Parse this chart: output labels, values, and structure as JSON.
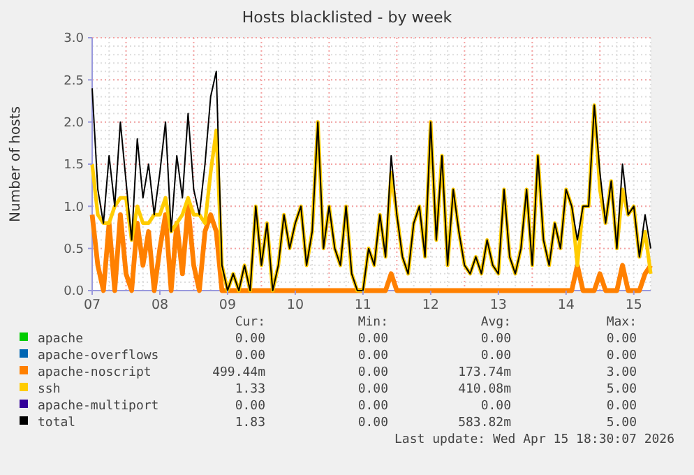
{
  "chart_data": {
    "type": "line",
    "title": "Hosts blacklisted - by week",
    "ylabel": "Number of hosts",
    "x": [
      "2026-04-07T00:00",
      "2026-04-07T02:00",
      "2026-04-07T04:00",
      "2026-04-07T06:00",
      "2026-04-07T08:00",
      "2026-04-07T10:00",
      "2026-04-07T12:00",
      "2026-04-07T14:00",
      "2026-04-07T16:00",
      "2026-04-07T18:00",
      "2026-04-07T20:00",
      "2026-04-07T22:00",
      "2026-04-08T00:00",
      "2026-04-08T02:00",
      "2026-04-08T04:00",
      "2026-04-08T06:00",
      "2026-04-08T08:00",
      "2026-04-08T10:00",
      "2026-04-08T12:00",
      "2026-04-08T14:00",
      "2026-04-08T16:00",
      "2026-04-08T18:00",
      "2026-04-08T20:00",
      "2026-04-08T22:00",
      "2026-04-09T00:00",
      "2026-04-09T02:00",
      "2026-04-09T04:00",
      "2026-04-09T06:00",
      "2026-04-09T08:00",
      "2026-04-09T10:00",
      "2026-04-09T12:00",
      "2026-04-09T14:00",
      "2026-04-09T16:00",
      "2026-04-09T18:00",
      "2026-04-09T20:00",
      "2026-04-09T22:00",
      "2026-04-10T00:00",
      "2026-04-10T02:00",
      "2026-04-10T04:00",
      "2026-04-10T06:00",
      "2026-04-10T08:00",
      "2026-04-10T10:00",
      "2026-04-10T12:00",
      "2026-04-10T14:00",
      "2026-04-10T16:00",
      "2026-04-10T18:00",
      "2026-04-10T20:00",
      "2026-04-10T22:00",
      "2026-04-11T00:00",
      "2026-04-11T02:00",
      "2026-04-11T04:00",
      "2026-04-11T06:00",
      "2026-04-11T08:00",
      "2026-04-11T10:00",
      "2026-04-11T12:00",
      "2026-04-11T14:00",
      "2026-04-11T16:00",
      "2026-04-11T18:00",
      "2026-04-11T20:00",
      "2026-04-11T22:00",
      "2026-04-12T00:00",
      "2026-04-12T02:00",
      "2026-04-12T04:00",
      "2026-04-12T06:00",
      "2026-04-12T08:00",
      "2026-04-12T10:00",
      "2026-04-12T12:00",
      "2026-04-12T14:00",
      "2026-04-12T16:00",
      "2026-04-12T18:00",
      "2026-04-12T20:00",
      "2026-04-12T22:00",
      "2026-04-13T00:00",
      "2026-04-13T02:00",
      "2026-04-13T04:00",
      "2026-04-13T06:00",
      "2026-04-13T08:00",
      "2026-04-13T10:00",
      "2026-04-13T12:00",
      "2026-04-13T14:00",
      "2026-04-13T16:00",
      "2026-04-13T18:00",
      "2026-04-13T20:00",
      "2026-04-13T22:00",
      "2026-04-14T00:00",
      "2026-04-14T02:00",
      "2026-04-14T04:00",
      "2026-04-14T06:00",
      "2026-04-14T08:00",
      "2026-04-14T10:00",
      "2026-04-14T12:00",
      "2026-04-14T14:00",
      "2026-04-14T16:00",
      "2026-04-14T18:00",
      "2026-04-14T20:00",
      "2026-04-14T22:00",
      "2026-04-15T00:00",
      "2026-04-15T02:00",
      "2026-04-15T04:00",
      "2026-04-15T06:00"
    ],
    "xlim": [
      "2026-04-07T00:00",
      "2026-04-15T06:00"
    ],
    "xticks": [
      {
        "value": "2026-04-07",
        "label": "07"
      },
      {
        "value": "2026-04-08",
        "label": "08"
      },
      {
        "value": "2026-04-09",
        "label": "09"
      },
      {
        "value": "2026-04-10",
        "label": "10"
      },
      {
        "value": "2026-04-11",
        "label": "11"
      },
      {
        "value": "2026-04-12",
        "label": "12"
      },
      {
        "value": "2026-04-13",
        "label": "13"
      },
      {
        "value": "2026-04-14",
        "label": "14"
      },
      {
        "value": "2026-04-15",
        "label": "15"
      }
    ],
    "ylim": [
      0,
      3
    ],
    "yticks": [
      {
        "value": 0,
        "label": "0.0"
      },
      {
        "value": 0.5,
        "label": "0.5"
      },
      {
        "value": 1,
        "label": "1.0"
      },
      {
        "value": 1.5,
        "label": "1.5"
      },
      {
        "value": 2,
        "label": "2.0"
      },
      {
        "value": 2.5,
        "label": "2.5"
      },
      {
        "value": 3,
        "label": "3.0"
      }
    ],
    "grid": true,
    "legend": "bottom",
    "line_style": "solid",
    "marker": "none",
    "series": [
      {
        "name": "apache",
        "color": "#00cc00",
        "values": [
          null,
          null,
          null,
          null,
          null,
          null,
          null,
          null,
          null,
          null,
          null,
          null,
          null,
          null,
          null,
          null,
          null,
          null,
          null,
          null,
          null,
          null,
          null,
          null,
          null,
          null,
          null,
          null,
          null,
          null,
          null,
          null,
          null,
          null,
          null,
          null,
          null,
          null,
          null,
          null,
          null,
          null,
          null,
          null,
          null,
          null,
          null,
          null,
          null,
          null,
          null,
          null,
          null,
          null,
          null,
          null,
          null,
          null,
          null,
          null,
          null,
          null,
          null,
          null,
          null,
          null,
          null,
          null,
          null,
          null,
          null,
          null,
          null,
          null,
          null,
          null,
          null,
          null,
          null,
          null,
          null,
          null,
          null,
          null,
          null,
          null,
          null,
          null,
          null,
          null,
          null,
          null,
          null,
          null,
          null,
          null,
          null,
          null,
          null,
          null
        ]
      },
      {
        "name": "apache-overflows",
        "color": "#0066b3",
        "values": [
          null,
          null,
          null,
          null,
          null,
          null,
          null,
          null,
          null,
          null,
          null,
          null,
          null,
          null,
          null,
          null,
          null,
          null,
          null,
          null,
          null,
          null,
          null,
          null,
          null,
          null,
          null,
          null,
          null,
          null,
          null,
          null,
          null,
          null,
          null,
          null,
          null,
          null,
          null,
          null,
          null,
          null,
          null,
          null,
          null,
          null,
          null,
          null,
          null,
          null,
          null,
          null,
          null,
          null,
          null,
          null,
          null,
          null,
          null,
          null,
          null,
          null,
          null,
          null,
          null,
          null,
          null,
          null,
          null,
          null,
          null,
          null,
          null,
          null,
          null,
          null,
          null,
          null,
          null,
          null,
          null,
          null,
          null,
          null,
          null,
          null,
          null,
          null,
          null,
          null,
          null,
          null,
          null,
          null,
          null,
          null,
          null,
          null,
          null,
          null
        ]
      },
      {
        "name": "apache-noscript",
        "color": "#ff8000",
        "values": [
          0.9,
          0.3,
          0,
          0.8,
          0,
          0.9,
          0.2,
          0,
          0.8,
          0.3,
          0.7,
          0,
          0.5,
          0.9,
          0,
          0.8,
          0.2,
          1.0,
          0.3,
          0,
          0.7,
          0.9,
          0.7,
          0,
          0,
          0,
          0,
          0,
          0,
          0,
          0,
          0,
          0,
          0,
          0,
          0,
          0,
          0,
          0,
          0,
          0,
          0,
          0,
          0,
          0,
          0,
          0,
          0,
          0,
          0,
          0,
          0,
          0,
          0.2,
          0,
          0,
          0,
          0,
          0,
          0,
          0,
          0,
          0,
          0,
          0,
          0,
          0,
          0,
          0,
          0,
          0,
          0,
          0,
          0,
          0,
          0,
          0,
          0,
          0,
          0,
          0,
          0,
          0,
          0,
          0,
          0,
          0.3,
          0,
          0,
          0,
          0.2,
          0,
          0,
          0,
          0.3,
          0,
          0,
          0,
          0.2,
          0.3
        ]
      },
      {
        "name": "ssh",
        "color": "#ffcc00",
        "values": [
          1.5,
          0.9,
          0.8,
          0.8,
          1.0,
          1.1,
          1.1,
          0.6,
          1.0,
          0.8,
          0.8,
          0.9,
          0.9,
          1.1,
          0.7,
          0.8,
          0.9,
          1.1,
          0.9,
          0.9,
          0.8,
          1.4,
          1.9,
          0.3,
          0,
          0.2,
          0,
          0.3,
          0,
          1.0,
          0.3,
          0.8,
          0,
          0.3,
          0.9,
          0.5,
          0.8,
          1.0,
          0.3,
          0.7,
          2.0,
          0.5,
          1.0,
          0.5,
          0.3,
          1.0,
          0.2,
          0,
          0,
          0.5,
          0.3,
          0.9,
          0.4,
          1.4,
          0.9,
          0.4,
          0.2,
          0.8,
          1.0,
          0.4,
          2.0,
          0.6,
          1.6,
          0.3,
          1.2,
          0.7,
          0.3,
          0.2,
          0.4,
          0.2,
          0.6,
          0.3,
          0.2,
          1.2,
          0.4,
          0.2,
          0.5,
          1.2,
          0.3,
          1.6,
          0.6,
          0.3,
          0.8,
          0.5,
          1.2,
          1.0,
          0.3,
          1.0,
          1.0,
          2.2,
          1.2,
          0.8,
          1.3,
          0.5,
          1.2,
          0.9,
          1.0,
          0.4,
          0.7,
          0.2
        ]
      },
      {
        "name": "apache-multiport",
        "color": "#330099",
        "values": [
          null,
          null,
          null,
          null,
          null,
          null,
          null,
          null,
          null,
          null,
          null,
          null,
          null,
          null,
          null,
          null,
          null,
          null,
          null,
          null,
          null,
          null,
          null,
          null,
          null,
          null,
          null,
          null,
          null,
          null,
          null,
          null,
          null,
          null,
          null,
          null,
          null,
          null,
          null,
          null,
          null,
          null,
          null,
          null,
          null,
          null,
          null,
          null,
          null,
          null,
          null,
          null,
          null,
          null,
          null,
          null,
          null,
          null,
          null,
          null,
          null,
          null,
          null,
          null,
          null,
          null,
          null,
          null,
          null,
          null,
          null,
          null,
          null,
          null,
          null,
          null,
          null,
          null,
          null,
          null,
          null,
          null,
          null,
          null,
          null,
          null,
          null,
          null,
          null,
          null,
          null,
          null,
          null,
          null,
          null,
          null,
          null,
          null,
          null,
          null
        ]
      },
      {
        "name": "total",
        "color": "#000000",
        "values": [
          2.4,
          1.2,
          0.8,
          1.6,
          1.0,
          2.0,
          1.3,
          0.6,
          1.8,
          1.1,
          1.5,
          0.9,
          1.4,
          2.0,
          0.7,
          1.6,
          1.1,
          2.1,
          1.2,
          0.9,
          1.5,
          2.3,
          2.6,
          0.3,
          0,
          0.2,
          0,
          0.3,
          0,
          1.0,
          0.3,
          0.8,
          0,
          0.3,
          0.9,
          0.5,
          0.8,
          1.0,
          0.3,
          0.7,
          2.0,
          0.5,
          1.0,
          0.5,
          0.3,
          1.0,
          0.2,
          0,
          0,
          0.5,
          0.3,
          0.9,
          0.4,
          1.6,
          0.9,
          0.4,
          0.2,
          0.8,
          1.0,
          0.4,
          2.0,
          0.6,
          1.6,
          0.3,
          1.2,
          0.7,
          0.3,
          0.2,
          0.4,
          0.2,
          0.6,
          0.3,
          0.2,
          1.2,
          0.4,
          0.2,
          0.5,
          1.2,
          0.3,
          1.6,
          0.6,
          0.3,
          0.8,
          0.5,
          1.2,
          1.0,
          0.6,
          1.0,
          1.0,
          2.2,
          1.4,
          0.8,
          1.3,
          0.5,
          1.5,
          0.9,
          1.0,
          0.4,
          0.9,
          0.5
        ]
      }
    ],
    "annotations": [
      "Cur:",
      "Min:",
      "Avg:",
      "Max:",
      "0.00",
      "0.00",
      "0.00",
      "0.00",
      "0.00",
      "0.00",
      "0.00",
      "0.00",
      "499.44m",
      "0.00",
      "173.74m",
      "3.00",
      "1.33",
      "0.00",
      "410.08m",
      "5.00",
      "0.00",
      "0.00",
      "0.00",
      "0.00",
      "1.83",
      "0.00",
      "583.82m",
      "5.00",
      "Last update: Wed Apr 15 18:30:07 2026"
    ]
  }
}
